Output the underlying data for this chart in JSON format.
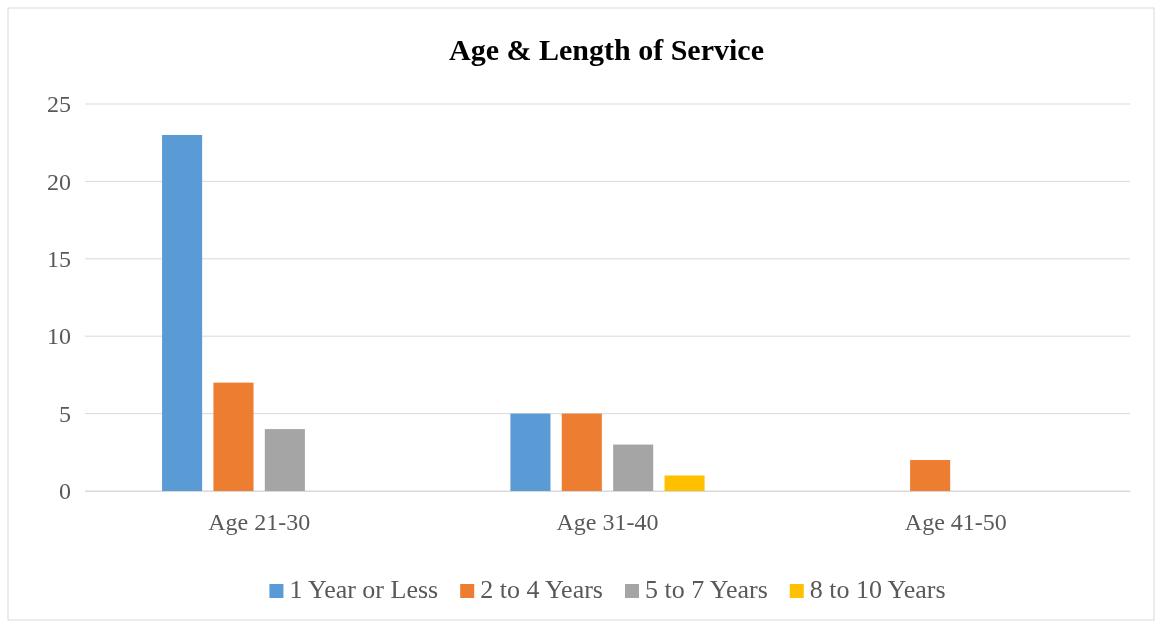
{
  "chart_data": {
    "type": "bar",
    "title": "Age & Length of Service",
    "categories": [
      "Age 21-30",
      "Age 31-40",
      "Age 41-50"
    ],
    "series": [
      {
        "name": "1 Year or Less",
        "color": "#5b9bd5",
        "values": [
          23,
          5,
          0
        ]
      },
      {
        "name": "2 to 4 Years",
        "color": "#ed7d31",
        "values": [
          7,
          5,
          2
        ]
      },
      {
        "name": "5 to 7 Years",
        "color": "#a5a5a5",
        "values": [
          4,
          3,
          0
        ]
      },
      {
        "name": "8 to 10 Years",
        "color": "#ffc000",
        "values": [
          0,
          1,
          0
        ]
      }
    ],
    "ylim": [
      0,
      25
    ],
    "yticks": [
      0,
      5,
      10,
      15,
      20,
      25
    ],
    "grid": "y",
    "legend": "bottom"
  }
}
